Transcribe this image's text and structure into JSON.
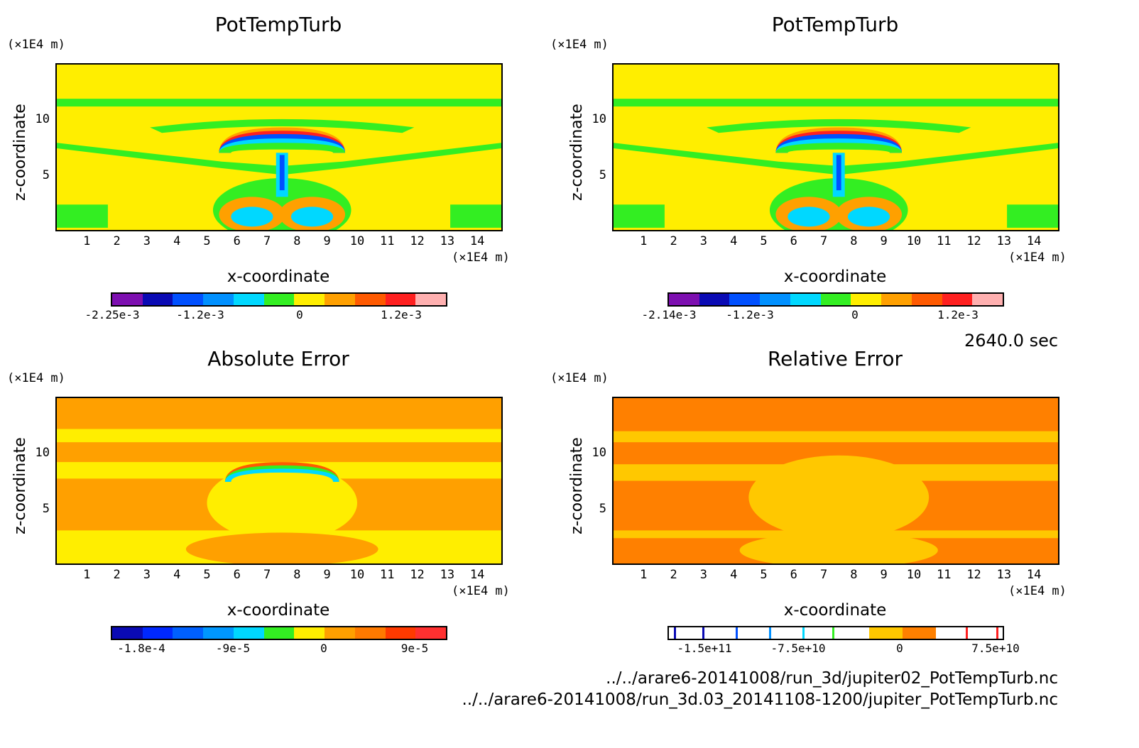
{
  "chart_data": [
    {
      "type": "heatmap",
      "title": "PotTempTurb",
      "xlabel": "x-coordinate",
      "ylabel": "z-coordinate",
      "x_unit": "(×1E4 m)",
      "y_unit": "(×1E4 m)",
      "x_ticks": [
        "1",
        "2",
        "3",
        "4",
        "5",
        "6",
        "7",
        "8",
        "9",
        "10",
        "11",
        "12",
        "13",
        "14"
      ],
      "y_ticks": [
        "5",
        "10"
      ],
      "xlim": [
        0,
        14.8
      ],
      "ylim": [
        0,
        15
      ],
      "colorbar_labels": [
        "-2.25e-3",
        "-1.2e-3",
        "0",
        "1.2e-3"
      ],
      "colorbar_colors": [
        "#7d0fb0",
        "#0a0ab4",
        "#0050ff",
        "#0090ff",
        "#00d8ff",
        "#33ee22",
        "#ffee00",
        "#ffa000",
        "#ff5a00",
        "#ff2020",
        "#ffb0b0"
      ]
    },
    {
      "type": "heatmap",
      "title": "PotTempTurb",
      "xlabel": "x-coordinate",
      "ylabel": "z-coordinate",
      "x_unit": "(×1E4 m)",
      "y_unit": "(×1E4 m)",
      "x_ticks": [
        "1",
        "2",
        "3",
        "4",
        "5",
        "6",
        "7",
        "8",
        "9",
        "10",
        "11",
        "12",
        "13",
        "14"
      ],
      "y_ticks": [
        "5",
        "10"
      ],
      "xlim": [
        0,
        14.8
      ],
      "ylim": [
        0,
        15
      ],
      "colorbar_labels": [
        "-2.14e-3",
        "-1.2e-3",
        "0",
        "1.2e-3"
      ],
      "colorbar_colors": [
        "#7d0fb0",
        "#0a0ab4",
        "#0050ff",
        "#0090ff",
        "#00d8ff",
        "#33ee22",
        "#ffee00",
        "#ffa000",
        "#ff5a00",
        "#ff2020",
        "#ffb0b0"
      ]
    },
    {
      "type": "heatmap",
      "title": "Absolute Error",
      "xlabel": "x-coordinate",
      "ylabel": "z-coordinate",
      "x_unit": "(×1E4 m)",
      "y_unit": "(×1E4 m)",
      "x_ticks": [
        "1",
        "2",
        "3",
        "4",
        "5",
        "6",
        "7",
        "8",
        "9",
        "10",
        "11",
        "12",
        "13",
        "14"
      ],
      "y_ticks": [
        "5",
        "10"
      ],
      "xlim": [
        0,
        14.8
      ],
      "ylim": [
        0,
        15
      ],
      "colorbar_labels": [
        "-1.8e-4",
        "-9e-5",
        "0",
        "9e-5"
      ],
      "colorbar_colors": [
        "#0a0ab4",
        "#0028ff",
        "#0060ff",
        "#0098ff",
        "#00d8ff",
        "#33ee22",
        "#ffee00",
        "#ffa000",
        "#ff7a00",
        "#ff3a00",
        "#ff3030"
      ]
    },
    {
      "type": "heatmap",
      "title": "Relative Error",
      "xlabel": "x-coordinate",
      "ylabel": "z-coordinate",
      "x_unit": "(×1E4 m)",
      "y_unit": "(×1E4 m)",
      "x_ticks": [
        "1",
        "2",
        "3",
        "4",
        "5",
        "6",
        "7",
        "8",
        "9",
        "10",
        "11",
        "12",
        "13",
        "14"
      ],
      "y_ticks": [
        "5",
        "10"
      ],
      "xlim": [
        0,
        14.8
      ],
      "ylim": [
        0,
        15
      ],
      "colorbar_labels": [
        "-1.5e+11",
        "-7.5e+10",
        "0",
        "7.5e+10"
      ],
      "colorbar_colors": [
        "#ffffff",
        "#ffffff",
        "#ffffff",
        "#ffffff",
        "#ffffff",
        "#ffffff",
        "#ffc800",
        "#ff8000",
        "#ffffff",
        "#ffffff"
      ]
    }
  ],
  "time_label": "2640.0 sec",
  "files": [
    "../../arare6-20141008/run_3d/jupiter02_PotTempTurb.nc",
    "../../arare6-20141008/run_3d.03_20141108-1200/jupiter_PotTempTurb.nc"
  ]
}
